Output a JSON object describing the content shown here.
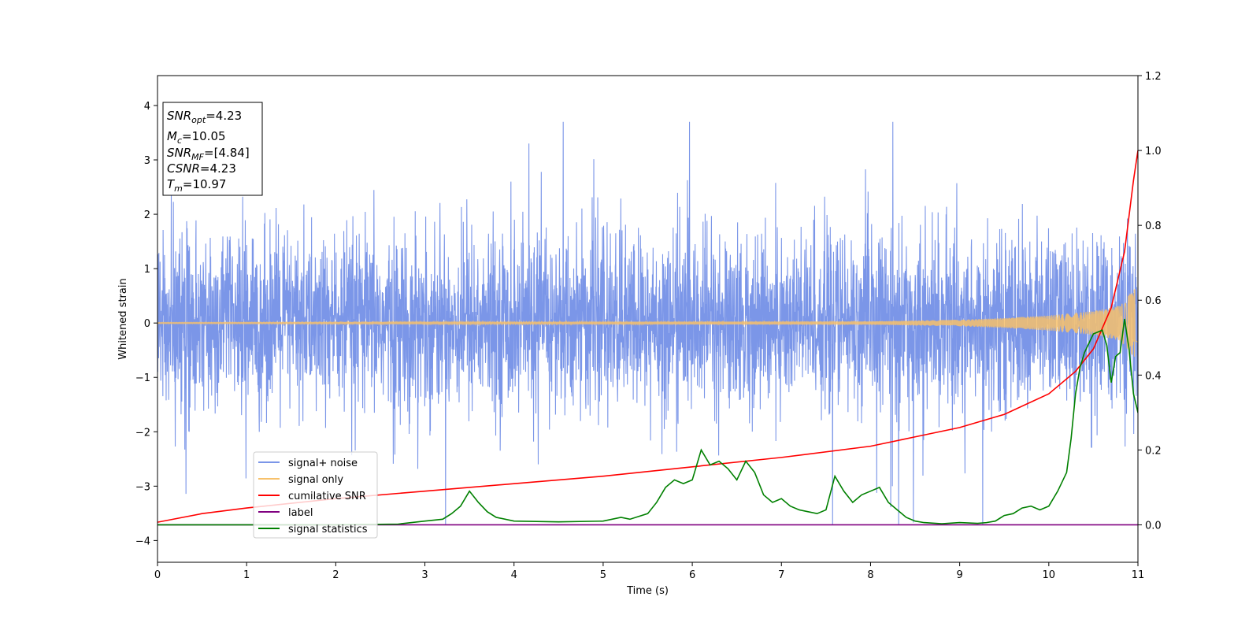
{
  "chart_data": {
    "type": "line",
    "xlabel": "Time (s)",
    "ylabel": "Whitened strain",
    "xlim": [
      0,
      11
    ],
    "ylim_left": [
      -4.4,
      4.55
    ],
    "ylim_right": [
      -0.1,
      1.2
    ],
    "x_ticks": [
      "0",
      "1",
      "2",
      "3",
      "4",
      "5",
      "6",
      "7",
      "8",
      "9",
      "10",
      "11"
    ],
    "y_ticks_left": [
      "−4",
      "−3",
      "−2",
      "−1",
      "0",
      "1",
      "2",
      "3",
      "4"
    ],
    "y_ticks_right": [
      "0.0",
      "0.2",
      "0.4",
      "0.6",
      "0.8",
      "1.0",
      "1.2"
    ],
    "grid": false,
    "legend_position": "lower-left",
    "info_box": {
      "snr_opt": {
        "sym": "SNR",
        "sub": "opt",
        "value": "=4.23"
      },
      "mc": {
        "sym": "M",
        "sub": "c",
        "value": "=10.05"
      },
      "snr_mf": {
        "sym": "SNR",
        "sub": "MF",
        "value": "=[4.84]"
      },
      "csnr": {
        "sym": "CSNR",
        "sub": "",
        "value": "=4.23"
      },
      "tm": {
        "sym": "T",
        "sub": "m",
        "value": "=10.97"
      }
    },
    "series": [
      {
        "name": "signal+ noise",
        "axis": "left",
        "color": "#7b96e8",
        "kind": "noise",
        "amplitude_envelope": 1.25,
        "spike_max": 3.7
      },
      {
        "name": "signal only",
        "axis": "left",
        "color": "#f7c16b",
        "kind": "chirp",
        "t_merge": 10.97,
        "envelope": {
          "x": [
            0,
            8,
            9,
            9.5,
            10,
            10.5,
            10.8,
            11
          ],
          "y": [
            0.01,
            0.03,
            0.06,
            0.09,
            0.14,
            0.22,
            0.32,
            0.72
          ]
        }
      },
      {
        "name": "cumilative SNR",
        "axis": "right",
        "color": "#ff0000",
        "x": [
          0,
          0.5,
          1,
          2,
          3,
          4,
          5,
          6,
          7,
          8,
          8.5,
          9,
          9.5,
          10,
          10.3,
          10.5,
          10.7,
          10.85,
          10.95,
          11
        ],
        "y": [
          0.007,
          0.03,
          0.045,
          0.07,
          0.09,
          0.11,
          0.13,
          0.155,
          0.18,
          0.21,
          0.235,
          0.26,
          0.295,
          0.35,
          0.41,
          0.47,
          0.58,
          0.73,
          0.92,
          1.0
        ]
      },
      {
        "name": "label",
        "axis": "right",
        "color": "#800080",
        "x": [
          0,
          11
        ],
        "y": [
          0,
          0
        ]
      },
      {
        "name": "signal statistics",
        "axis": "right",
        "color": "#008000",
        "x": [
          0,
          1,
          2,
          2.7,
          3.0,
          3.2,
          3.3,
          3.4,
          3.5,
          3.6,
          3.7,
          3.8,
          4.0,
          4.5,
          5.0,
          5.2,
          5.3,
          5.5,
          5.6,
          5.7,
          5.8,
          5.9,
          6.0,
          6.1,
          6.2,
          6.3,
          6.4,
          6.5,
          6.6,
          6.7,
          6.8,
          6.9,
          7.0,
          7.1,
          7.2,
          7.3,
          7.4,
          7.5,
          7.6,
          7.7,
          7.8,
          7.9,
          8.0,
          8.1,
          8.2,
          8.3,
          8.4,
          8.5,
          8.6,
          8.8,
          9.0,
          9.2,
          9.3,
          9.4,
          9.5,
          9.6,
          9.7,
          9.8,
          9.9,
          10.0,
          10.1,
          10.2,
          10.25,
          10.3,
          10.35,
          10.4,
          10.5,
          10.6,
          10.65,
          10.7,
          10.75,
          10.8,
          10.85,
          10.9,
          10.95,
          11.0
        ],
        "y": [
          0,
          0,
          0,
          0.002,
          0.01,
          0.015,
          0.03,
          0.05,
          0.09,
          0.06,
          0.035,
          0.02,
          0.01,
          0.008,
          0.01,
          0.02,
          0.015,
          0.03,
          0.06,
          0.1,
          0.12,
          0.11,
          0.12,
          0.2,
          0.16,
          0.17,
          0.15,
          0.12,
          0.17,
          0.14,
          0.08,
          0.06,
          0.07,
          0.05,
          0.04,
          0.035,
          0.03,
          0.04,
          0.13,
          0.09,
          0.06,
          0.08,
          0.09,
          0.1,
          0.06,
          0.04,
          0.02,
          0.01,
          0.006,
          0.003,
          0.006,
          0.004,
          0.006,
          0.01,
          0.025,
          0.03,
          0.045,
          0.05,
          0.04,
          0.05,
          0.09,
          0.14,
          0.23,
          0.35,
          0.42,
          0.46,
          0.51,
          0.52,
          0.48,
          0.38,
          0.45,
          0.46,
          0.55,
          0.47,
          0.35,
          0.3
        ]
      }
    ]
  }
}
